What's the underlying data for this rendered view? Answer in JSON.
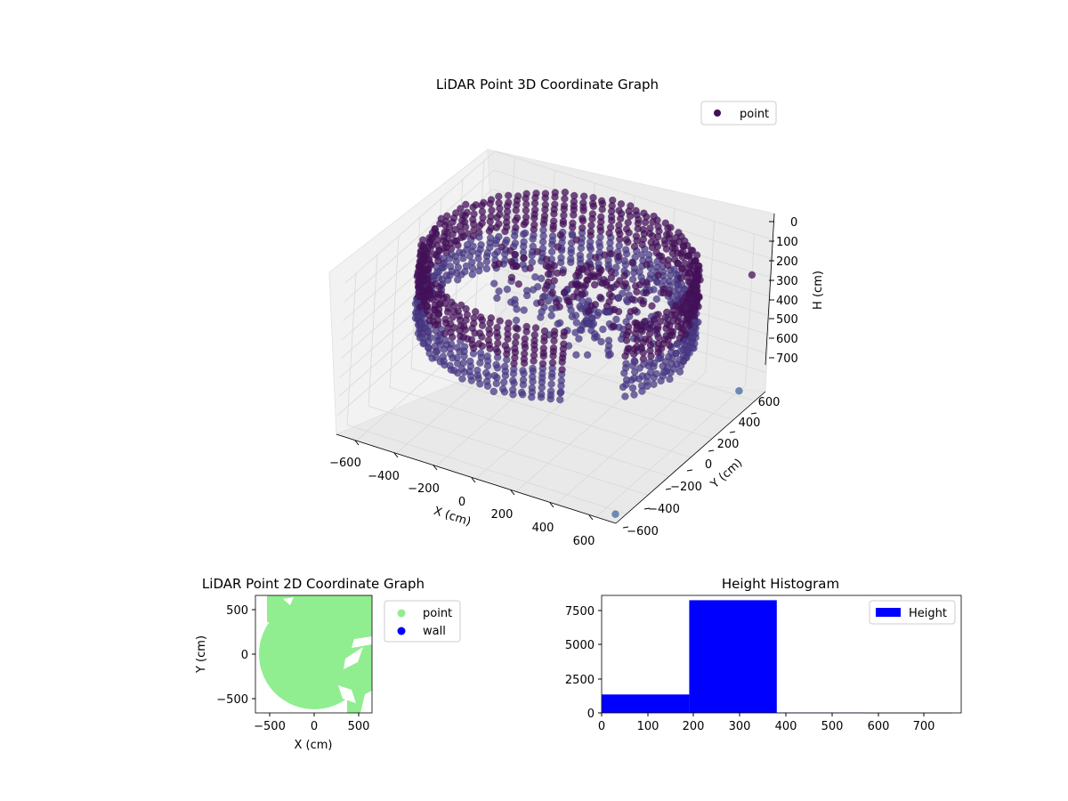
{
  "colors": {
    "point_3d_dark": "#45105a",
    "point_3d_mid": "#4a3a87",
    "point_3d_light": "#3e6ba0",
    "point_2d": "#90ee90",
    "wall": "#0000ff",
    "histogram": "#0000ff",
    "pane": "#f2f2f2",
    "grid": "#d9d9d9"
  },
  "chart_data": [
    {
      "type": "scatter",
      "title": "LiDAR Point 3D Coordinate Graph",
      "xlabel": "X (cm)",
      "ylabel": "Y (cm)",
      "zlabel": "H (cm)",
      "xlim": [
        -700,
        700
      ],
      "ylim": [
        -700,
        700
      ],
      "zlim": [
        0,
        800
      ],
      "z_inverted": true,
      "xticks": [
        "−600",
        "−400",
        "−200",
        "0",
        "200",
        "400",
        "600"
      ],
      "yticks": [
        "−600",
        "−400",
        "−200",
        "0",
        "200",
        "400",
        "600"
      ],
      "zticks": [
        "0",
        "100",
        "200",
        "300",
        "400",
        "500",
        "600",
        "700"
      ],
      "legend": {
        "placement": "top-right",
        "entries": [
          "point"
        ]
      },
      "grid": true,
      "series": [
        {
          "name": "point",
          "description_shape": "ring wall of points around a circular room, radius ~600 cm, heights 0–380 cm, plus scattered interior clusters",
          "ring_radius": 610,
          "height_range": [
            0,
            380
          ]
        }
      ]
    },
    {
      "type": "scatter",
      "title": "LiDAR Point 2D Coordinate Graph",
      "xlabel": "X (cm)",
      "ylabel": "Y (cm)",
      "xlim": [
        -650,
        650
      ],
      "ylim": [
        -650,
        650
      ],
      "xticks": [
        "−500",
        "0",
        "500"
      ],
      "yticks": [
        "−500",
        "0",
        "500"
      ],
      "legend": {
        "placement": "outside-right",
        "entries": [
          "point",
          "wall"
        ]
      },
      "series": [
        {
          "name": "point",
          "shape": "filled disk radius ~610 cm"
        },
        {
          "name": "wall",
          "values": []
        }
      ]
    },
    {
      "type": "bar",
      "title": "Height Histogram",
      "xlim": [
        0,
        780
      ],
      "ylim": [
        0,
        8600
      ],
      "xticks": [
        "0",
        "100",
        "200",
        "300",
        "400",
        "500",
        "600",
        "700"
      ],
      "yticks": [
        "0",
        "2500",
        "5000",
        "7500"
      ],
      "legend": {
        "placement": "top-right",
        "entries": [
          "Height"
        ]
      },
      "bins": [
        {
          "x0": 0,
          "x1": 190,
          "count": 1350
        },
        {
          "x0": 190,
          "x1": 380,
          "count": 8250
        },
        {
          "x0": 380,
          "x1": 570,
          "count": 20
        },
        {
          "x0": 570,
          "x1": 760,
          "count": 5
        }
      ]
    }
  ]
}
